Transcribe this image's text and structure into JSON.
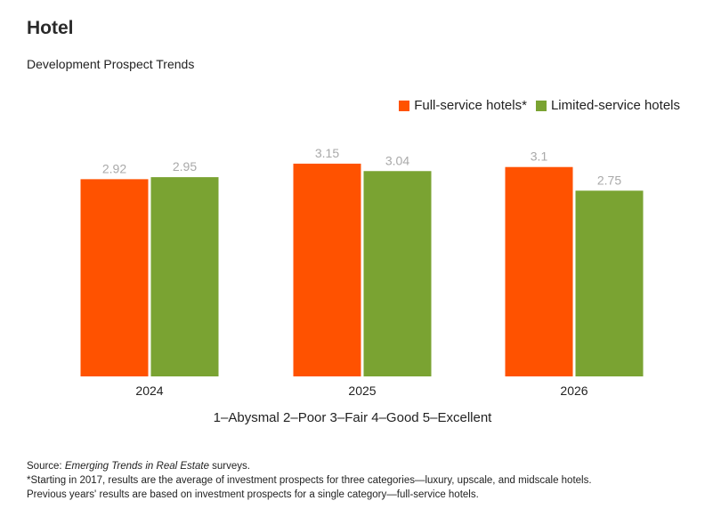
{
  "header": {
    "title": "Hotel",
    "subtitle": "Development Prospect Trends"
  },
  "legend": [
    {
      "label": "Full-service hotels*",
      "color": "#ff5200"
    },
    {
      "label": "Limited-service hotels",
      "color": "#7aa332"
    }
  ],
  "scale_note": "1–Abysmal 2–Poor 3–Fair 4–Good 5–Excellent",
  "footer": {
    "source_prefix": "Source: ",
    "source_italic": "Emerging Trends in Real Estate",
    "source_suffix": " surveys.",
    "note_line1": "*Starting in 2017, results are the average of investment prospects for three categories—luxury, upscale, and midscale hotels.",
    "note_line2": "Previous years' results are based on investment prospects for a single category—full-service hotels."
  },
  "chart_data": {
    "type": "bar",
    "title": "Hotel",
    "subtitle": "Development Prospect Trends",
    "categories": [
      "2024",
      "2025",
      "2026"
    ],
    "series": [
      {
        "name": "Full-service hotels*",
        "color": "#ff5200",
        "values": [
          2.92,
          3.15,
          3.1
        ],
        "labels": [
          "2.92",
          "3.15",
          "3.1"
        ]
      },
      {
        "name": "Limited-service hotels",
        "color": "#7aa332",
        "values": [
          2.95,
          3.04,
          2.75
        ],
        "labels": [
          "2.95",
          "3.04",
          "2.75"
        ]
      }
    ],
    "xlabel": "1–Abysmal 2–Poor 3–Fair 4–Good 5–Excellent",
    "ylabel": "",
    "ylim": [
      0,
      3.15
    ],
    "grid": false,
    "legend_position": "top-right",
    "data_labels": true
  }
}
